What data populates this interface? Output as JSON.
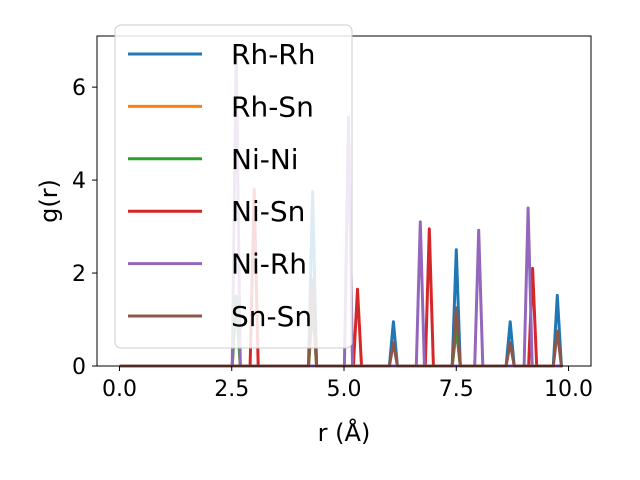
{
  "chart_data": {
    "type": "line",
    "title": "",
    "xlabel": "r (Å)",
    "ylabel": "g(r)",
    "xlim": [
      -0.5,
      10.5
    ],
    "ylim": [
      0,
      7.1
    ],
    "xticks": [
      0.0,
      2.5,
      5.0,
      7.5,
      10.0
    ],
    "xtick_labels": [
      "0.0",
      "2.5",
      "5.0",
      "7.5",
      "10.0"
    ],
    "yticks": [
      0,
      2,
      4,
      6
    ],
    "ytick_labels": [
      "0",
      "2",
      "4",
      "6"
    ],
    "legend": {
      "position": "upper-left"
    },
    "series": [
      {
        "name": "Rh-Rh",
        "color": "#1f77b4",
        "peaks": [
          [
            4.3,
            3.75
          ],
          [
            6.1,
            0.95
          ],
          [
            7.5,
            2.5
          ],
          [
            8.7,
            0.95
          ],
          [
            9.75,
            1.52
          ]
        ]
      },
      {
        "name": "Rh-Sn",
        "color": "#ff7f0e",
        "peaks": [
          [
            2.6,
            1.5
          ],
          [
            4.3,
            1.3
          ],
          [
            7.5,
            0.8
          ]
        ]
      },
      {
        "name": "Ni-Ni",
        "color": "#2ca02c",
        "peaks": [
          [
            2.6,
            1.5
          ],
          [
            4.3,
            1.3
          ],
          [
            7.5,
            0.8
          ]
        ]
      },
      {
        "name": "Ni-Sn",
        "color": "#d62728",
        "peaks": [
          [
            3.0,
            3.8
          ],
          [
            5.3,
            1.65
          ],
          [
            6.9,
            2.95
          ],
          [
            9.2,
            2.1
          ]
        ]
      },
      {
        "name": "Ni-Rh",
        "color": "#9467bd",
        "peaks": [
          [
            2.6,
            6.7
          ],
          [
            5.1,
            5.35
          ],
          [
            6.7,
            3.1
          ],
          [
            8.0,
            2.92
          ],
          [
            9.1,
            3.4
          ]
        ]
      },
      {
        "name": "Sn-Sn",
        "color": "#8c564b",
        "peaks": [
          [
            4.3,
            1.85
          ],
          [
            6.1,
            0.5
          ],
          [
            7.5,
            1.25
          ],
          [
            8.7,
            0.5
          ],
          [
            9.75,
            0.75
          ]
        ]
      }
    ]
  }
}
